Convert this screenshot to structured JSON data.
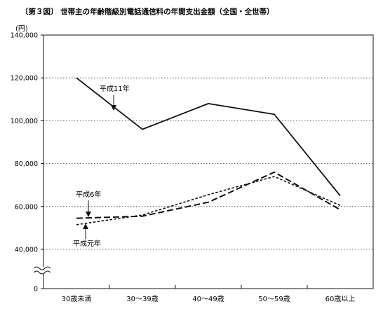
{
  "chart_data": {
    "type": "line",
    "title": "〔第３図〕 世帯主の年齢階級別電話通信料の年間支出金額（全国・全世帯）",
    "unit": "(円)",
    "categories": [
      "30歳未満",
      "30～39歳",
      "40～49歳",
      "50～59歳",
      "60歳以上"
    ],
    "y_ticks": [
      "140,000",
      "120,000",
      "100,000",
      "80,000",
      "60,000",
      "40,000",
      "0"
    ],
    "ylim": [
      0,
      140000
    ],
    "axis_break": true,
    "grid": true,
    "series": [
      {
        "name": "平成11年",
        "style": "solid",
        "values": [
          120000,
          96000,
          108000,
          103000,
          65000
        ]
      },
      {
        "name": "平成6年",
        "style": "dashed",
        "values": [
          54500,
          55500,
          62000,
          76000,
          58500
        ]
      },
      {
        "name": "平成元年",
        "style": "dotted",
        "values": [
          51500,
          56000,
          65500,
          74000,
          60500
        ]
      }
    ],
    "annotations": [
      "平成11年",
      "平成6年",
      "平成元年"
    ]
  }
}
